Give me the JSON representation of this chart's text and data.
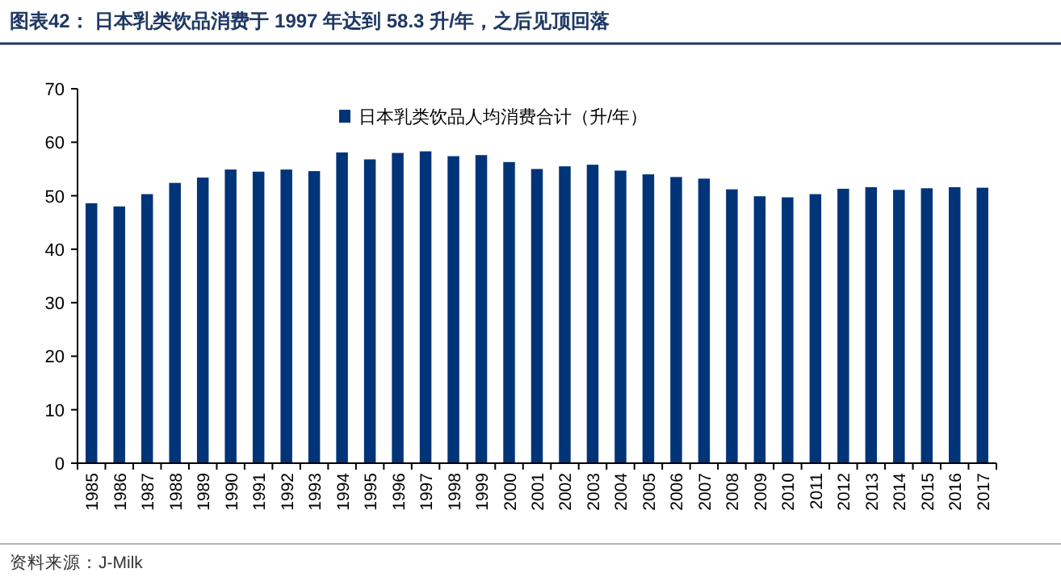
{
  "chart_data": {
    "type": "bar",
    "title": "图表42：  日本乳类饮品消费于 1997 年达到 58.3 升/年，之后见顶回落",
    "categories": [
      "1985",
      "1986",
      "1987",
      "1988",
      "1989",
      "1990",
      "1991",
      "1992",
      "1993",
      "1994",
      "1995",
      "1996",
      "1997",
      "1998",
      "1999",
      "2000",
      "2001",
      "2002",
      "2003",
      "2004",
      "2005",
      "2006",
      "2007",
      "2008",
      "2009",
      "2010",
      "2011",
      "2012",
      "2013",
      "2014",
      "2015",
      "2016",
      "2017"
    ],
    "series": [
      {
        "name": "日本乳类饮品人均消费合计（升/年）",
        "color": "#003478",
        "values": [
          48.6,
          48.0,
          50.3,
          52.4,
          53.4,
          54.9,
          54.5,
          54.9,
          54.6,
          58.1,
          56.8,
          58.0,
          58.3,
          57.4,
          57.6,
          56.3,
          55.0,
          55.5,
          55.8,
          54.7,
          54.0,
          53.5,
          53.2,
          51.2,
          49.9,
          49.7,
          50.3,
          51.3,
          51.6,
          51.1,
          51.4,
          51.6,
          51.5
        ]
      }
    ],
    "ylim": [
      0,
      70
    ],
    "yticks": [
      0,
      10,
      20,
      30,
      40,
      50,
      60,
      70
    ],
    "legend": "top",
    "annotations": [
      "资料来源：J-Milk"
    ]
  }
}
